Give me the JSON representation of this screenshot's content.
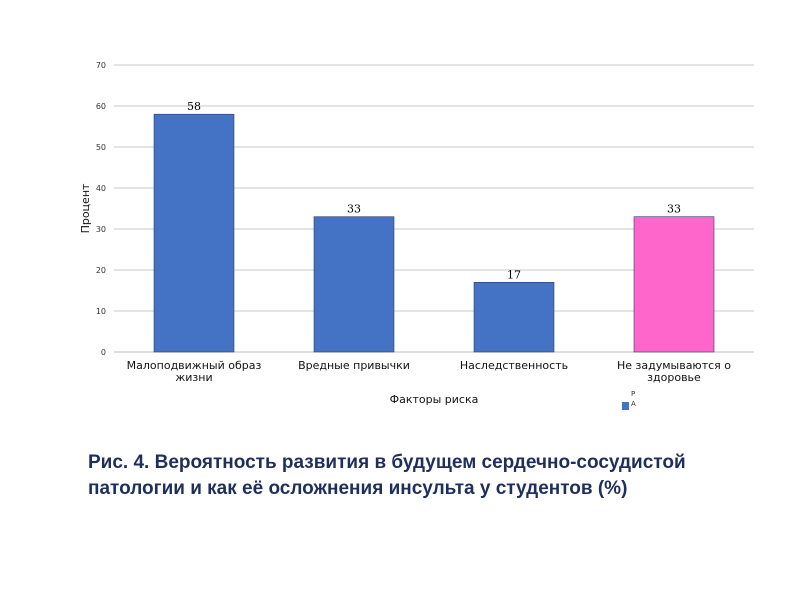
{
  "chart_data": {
    "type": "bar",
    "categories": [
      [
        "Малоподвижный образ",
        "жизни"
      ],
      [
        "Вредные привычки"
      ],
      [
        "Наследственность"
      ],
      [
        "Не задумываются о",
        "здоровье"
      ]
    ],
    "values": [
      58,
      33,
      17,
      33
    ],
    "bar_colors": [
      "#4472c4",
      "#4472c4",
      "#4472c4",
      "#ff66cc"
    ],
    "xlabel": "Факторы риска",
    "ylabel": "Процент",
    "ylim": [
      0,
      70
    ],
    "yticks": [
      0,
      10,
      20,
      30,
      40,
      50,
      60,
      70
    ],
    "grid": true,
    "legend": {
      "placement": "bottom-right",
      "marker_color": "#4472c4",
      "text_lines": [
        "Р",
        "А"
      ]
    }
  },
  "caption": "Рис. 4. Вероятность развития в будущем сердечно-сосудистой патологии и как её осложнения инсульта у студентов (%)"
}
